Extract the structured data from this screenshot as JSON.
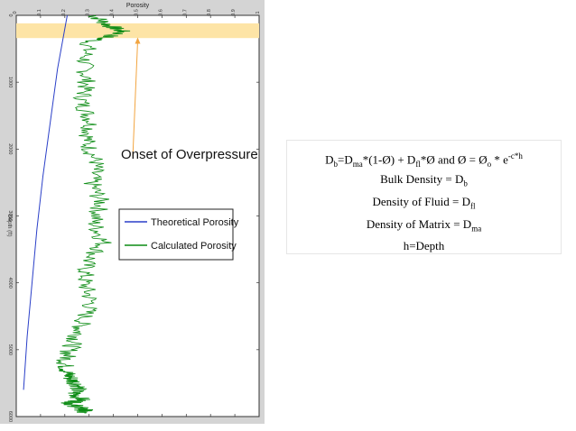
{
  "colors": {
    "theoretical": "#2a3fc8",
    "calculated": "#0c8c14",
    "highlight": "#fde4a6",
    "annotation_arrow": "#f2a541"
  },
  "annotation": {
    "text": "Onset of Overpressure"
  },
  "formula": {
    "line1": {
      "Db": "D",
      "b": "b",
      "eq": "=D",
      "ma": "ma",
      "a": "*(1-Ø) + D",
      "fl": "fl",
      "b2": "*Ø and Ø = Ø",
      "o": "o",
      "c": " * e",
      "exp": "-c*h"
    },
    "line2": {
      "t": "Bulk Density = D",
      "s": "b"
    },
    "line3": {
      "t": "Density of Fluid = D",
      "s": "fl"
    },
    "line4": {
      "t": "Density of Matrix = D",
      "s": "ma"
    },
    "line5": {
      "t": "h=Depth"
    }
  },
  "chart_data": {
    "type": "line",
    "title": "Porosity",
    "xlabel": "Porosity",
    "ylabel": "Depth (ft)",
    "xlim": [
      0,
      1
    ],
    "ylim": [
      6000,
      0
    ],
    "xticks": [
      "0",
      "0.1",
      "0.2",
      "0.3",
      "0.4",
      "0.5",
      "0.6",
      "0.7",
      "0.8",
      "0.9",
      "1"
    ],
    "yticks": [
      "0",
      "1000",
      "2000",
      "3000",
      "4000",
      "5000",
      "6000"
    ],
    "highlight_band": [
      120,
      340
    ],
    "legend_position": "center-right",
    "series": [
      {
        "name": "Theoretical Porosity",
        "x": [
          0.21,
          0.17,
          0.14,
          0.11,
          0.085,
          0.065,
          0.045,
          0.03
        ],
        "y": [
          0,
          800,
          1600,
          2400,
          3200,
          4000,
          4800,
          5600
        ]
      },
      {
        "name": "Calculated Porosity",
        "x": [
          0.32,
          0.38,
          0.44,
          0.3,
          0.28,
          0.29,
          0.27,
          0.31,
          0.29,
          0.33,
          0.31,
          0.35,
          0.32,
          0.36,
          0.29,
          0.28,
          0.31,
          0.27,
          0.25,
          0.22,
          0.2,
          0.21,
          0.23,
          0.26,
          0.24,
          0.27,
          0.22,
          0.25,
          0.28,
          0.26
        ],
        "y": [
          0,
          150,
          250,
          400,
          700,
          1000,
          1300,
          1600,
          1900,
          2200,
          2500,
          2800,
          3100,
          3400,
          3700,
          4000,
          4300,
          4600,
          4800,
          5000,
          5200,
          5350,
          5450,
          5550,
          5650,
          5750,
          5800,
          5850,
          5900,
          5950
        ]
      }
    ]
  }
}
